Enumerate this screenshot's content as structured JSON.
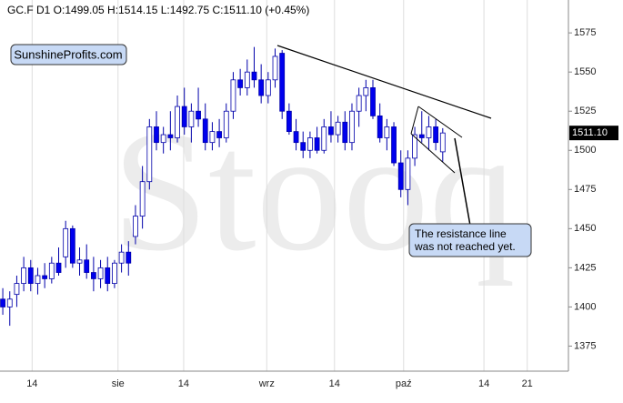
{
  "chart_data": {
    "type": "candlestick",
    "header": "GC.F  D1  O:1499.05 H:1514.15 L:1492.75 C:1511.10  (+0.45%)",
    "watermark": "Stooq",
    "brand": "SunshineProfits.com",
    "annotation": "The resistance line was not reached yet.",
    "last_price_label": "1511.10",
    "last_close": 1511.1,
    "up_color": "#ffffff",
    "down_color": "#0000ee",
    "ylim": [
      1359,
      1596
    ],
    "yticks": [
      1375,
      1400,
      1425,
      1450,
      1475,
      1500,
      1525,
      1550,
      1575
    ],
    "xlim": [
      -0.4,
      81
    ],
    "xticks": [
      {
        "value": 4.2,
        "label": "14"
      },
      {
        "value": 16.5,
        "label": "sie"
      },
      {
        "value": 25.9,
        "label": "14"
      },
      {
        "value": 37.8,
        "label": "wrz"
      },
      {
        "value": 47.5,
        "label": "14"
      },
      {
        "value": 57.4,
        "label": "paź"
      },
      {
        "value": 68.9,
        "label": "14"
      },
      {
        "value": 75.1,
        "label": "21"
      }
    ],
    "ohlc": [
      [
        1405,
        1412,
        1395,
        1400
      ],
      [
        1400,
        1410,
        1388,
        1405
      ],
      [
        1408,
        1420,
        1400,
        1415
      ],
      [
        1415,
        1432,
        1410,
        1425
      ],
      [
        1425,
        1430,
        1410,
        1415
      ],
      [
        1415,
        1425,
        1408,
        1420
      ],
      [
        1420,
        1428,
        1412,
        1418
      ],
      [
        1418,
        1432,
        1415,
        1428
      ],
      [
        1428,
        1438,
        1420,
        1422
      ],
      [
        1432,
        1455,
        1425,
        1450
      ],
      [
        1450,
        1452,
        1425,
        1428
      ],
      [
        1428,
        1438,
        1420,
        1430
      ],
      [
        1430,
        1440,
        1418,
        1422
      ],
      [
        1422,
        1432,
        1410,
        1418
      ],
      [
        1418,
        1430,
        1412,
        1425
      ],
      [
        1425,
        1432,
        1410,
        1415
      ],
      [
        1415,
        1430,
        1412,
        1428
      ],
      [
        1428,
        1440,
        1422,
        1435
      ],
      [
        1435,
        1442,
        1420,
        1428
      ],
      [
        1445,
        1465,
        1440,
        1458
      ],
      [
        1458,
        1490,
        1450,
        1480
      ],
      [
        1480,
        1520,
        1475,
        1515
      ],
      [
        1515,
        1525,
        1500,
        1505
      ],
      [
        1505,
        1515,
        1498,
        1510
      ],
      [
        1510,
        1525,
        1500,
        1508
      ],
      [
        1508,
        1535,
        1505,
        1528
      ],
      [
        1528,
        1540,
        1510,
        1515
      ],
      [
        1515,
        1530,
        1505,
        1525
      ],
      [
        1525,
        1540,
        1515,
        1520
      ],
      [
        1520,
        1530,
        1500,
        1505
      ],
      [
        1505,
        1518,
        1500,
        1512
      ],
      [
        1512,
        1520,
        1502,
        1508
      ],
      [
        1508,
        1530,
        1505,
        1525
      ],
      [
        1525,
        1550,
        1520,
        1545
      ],
      [
        1545,
        1552,
        1535,
        1540
      ],
      [
        1540,
        1558,
        1535,
        1550
      ],
      [
        1550,
        1566,
        1540,
        1545
      ],
      [
        1545,
        1555,
        1530,
        1535
      ],
      [
        1535,
        1550,
        1530,
        1545
      ],
      [
        1545,
        1565,
        1540,
        1560
      ],
      [
        1562,
        1564,
        1520,
        1525
      ],
      [
        1525,
        1530,
        1510,
        1512
      ],
      [
        1512,
        1520,
        1500,
        1505
      ],
      [
        1505,
        1512,
        1495,
        1500
      ],
      [
        1500,
        1512,
        1495,
        1508
      ],
      [
        1508,
        1515,
        1498,
        1500
      ],
      [
        1500,
        1520,
        1498,
        1515
      ],
      [
        1515,
        1525,
        1505,
        1510
      ],
      [
        1510,
        1522,
        1505,
        1518
      ],
      [
        1518,
        1525,
        1500,
        1505
      ],
      [
        1505,
        1530,
        1500,
        1525
      ],
      [
        1525,
        1540,
        1515,
        1535
      ],
      [
        1535,
        1545,
        1525,
        1540
      ],
      [
        1540,
        1545,
        1520,
        1522
      ],
      [
        1522,
        1530,
        1505,
        1508
      ],
      [
        1508,
        1520,
        1500,
        1515
      ],
      [
        1515,
        1518,
        1490,
        1492
      ],
      [
        1492,
        1500,
        1470,
        1475
      ],
      [
        1475,
        1500,
        1465,
        1495
      ],
      [
        1495,
        1515,
        1490,
        1510
      ],
      [
        1510,
        1525,
        1505,
        1508
      ],
      [
        1508,
        1522,
        1500,
        1515
      ],
      [
        1515,
        1520,
        1500,
        1505
      ],
      [
        1499.05,
        1514.15,
        1492.75,
        1511.1
      ]
    ]
  }
}
